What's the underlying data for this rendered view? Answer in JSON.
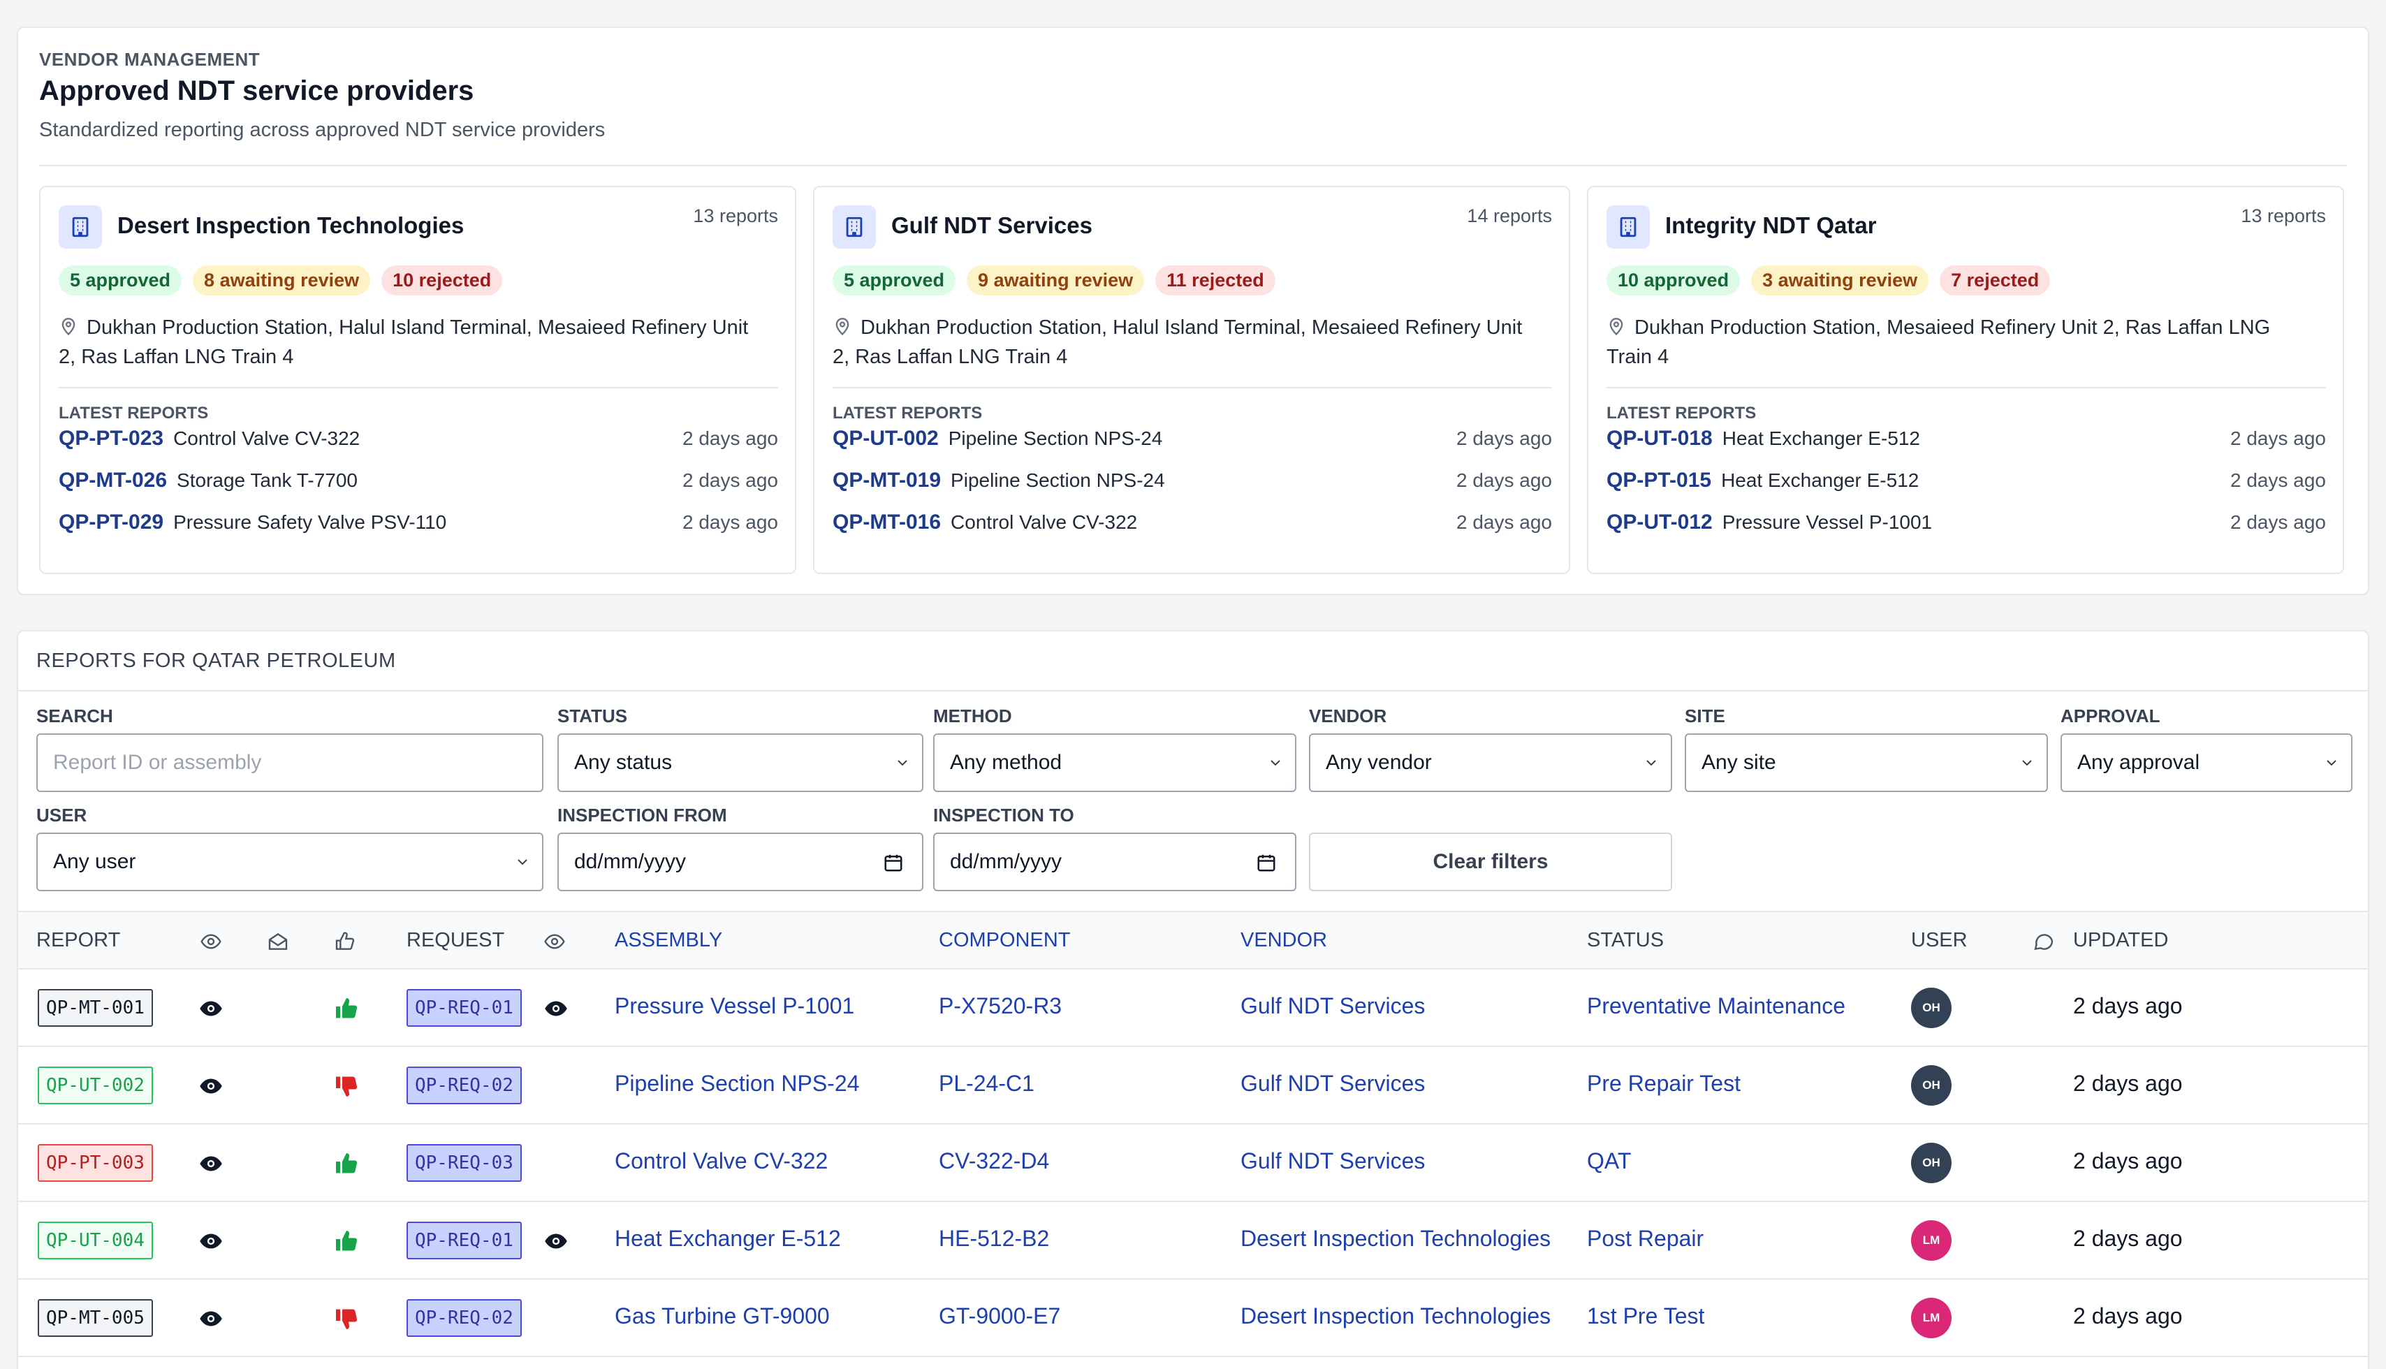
{
  "vendor_management": {
    "eyebrow": "VENDOR MANAGEMENT",
    "title": "Approved NDT service providers",
    "subtitle": "Standardized reporting across approved NDT service providers",
    "latest_label": "LATEST REPORTS",
    "vendors": [
      {
        "name": "Desert Inspection Technologies",
        "count": "13 reports",
        "approved": "5 approved",
        "awaiting": "8 awaiting review",
        "rejected": "10 rejected",
        "sites": "Dukhan Production Station, Halul Island Terminal, Mesaieed Refinery Unit 2, Ras Laffan LNG Train 4",
        "reports": [
          {
            "id": "QP-PT-023",
            "name": "Control Valve CV-322",
            "time": "2 days ago"
          },
          {
            "id": "QP-MT-026",
            "name": "Storage Tank T-7700",
            "time": "2 days ago"
          },
          {
            "id": "QP-PT-029",
            "name": "Pressure Safety Valve PSV-110",
            "time": "2 days ago"
          }
        ]
      },
      {
        "name": "Gulf NDT Services",
        "count": "14 reports",
        "approved": "5 approved",
        "awaiting": "9 awaiting review",
        "rejected": "11 rejected",
        "sites": "Dukhan Production Station, Halul Island Terminal, Mesaieed Refinery Unit 2, Ras Laffan LNG Train 4",
        "reports": [
          {
            "id": "QP-UT-002",
            "name": "Pipeline Section NPS-24",
            "time": "2 days ago"
          },
          {
            "id": "QP-MT-019",
            "name": "Pipeline Section NPS-24",
            "time": "2 days ago"
          },
          {
            "id": "QP-MT-016",
            "name": "Control Valve CV-322",
            "time": "2 days ago"
          }
        ]
      },
      {
        "name": "Integrity NDT Qatar",
        "count": "13 reports",
        "approved": "10 approved",
        "awaiting": "3 awaiting review",
        "rejected": "7 rejected",
        "sites": "Dukhan Production Station, Mesaieed Refinery Unit 2, Ras Laffan LNG Train 4",
        "reports": [
          {
            "id": "QP-UT-018",
            "name": "Heat Exchanger E-512",
            "time": "2 days ago"
          },
          {
            "id": "QP-PT-015",
            "name": "Heat Exchanger E-512",
            "time": "2 days ago"
          },
          {
            "id": "QP-UT-012",
            "name": "Pressure Vessel P-1001",
            "time": "2 days ago"
          }
        ]
      }
    ]
  },
  "reports": {
    "title": "REPORTS FOR QATAR PETROLEUM",
    "filters": {
      "search_label": "SEARCH",
      "search_placeholder": "Report ID or assembly",
      "status_label": "STATUS",
      "status_value": "Any status",
      "method_label": "METHOD",
      "method_value": "Any method",
      "vendor_label": "VENDOR",
      "vendor_value": "Any vendor",
      "site_label": "SITE",
      "site_value": "Any site",
      "approval_label": "APPROVAL",
      "approval_value": "Any approval",
      "user_label": "USER",
      "user_value": "Any user",
      "from_label": "INSPECTION FROM",
      "from_value": "dd/mm/yyyy",
      "to_label": "INSPECTION TO",
      "to_value": "dd/mm/yyyy",
      "clear_label": "Clear filters"
    },
    "columns": {
      "report": "REPORT",
      "request": "REQUEST",
      "assembly": "ASSEMBLY",
      "component": "COMPONENT",
      "vendor": "VENDOR",
      "status": "STATUS",
      "user": "USER",
      "updated": "UPDATED"
    },
    "icons": {
      "viewed": "eye-icon",
      "emailed": "envelope-open-icon",
      "approval": "thumbs-up-icon",
      "comments": "comment-icon"
    },
    "colors": {
      "avatar_oh": "#334155",
      "avatar_lm": "#db2777",
      "approve": "#16a34a",
      "reject": "#dc2626"
    },
    "rows": [
      {
        "report": "QP-MT-001",
        "report_style": "gray",
        "approval": "up",
        "request": "QP-REQ-01",
        "req_viewed": true,
        "assembly": "Pressure Vessel P-1001",
        "component": "P-X7520-R3",
        "vendor": "Gulf NDT Services",
        "status": "Preventative Maintenance",
        "user": "OH",
        "updated": "2 days ago"
      },
      {
        "report": "QP-UT-002",
        "report_style": "green",
        "approval": "down",
        "request": "QP-REQ-02",
        "req_viewed": false,
        "assembly": "Pipeline Section NPS-24",
        "component": "PL-24-C1",
        "vendor": "Gulf NDT Services",
        "status": "Pre Repair Test",
        "user": "OH",
        "updated": "2 days ago"
      },
      {
        "report": "QP-PT-003",
        "report_style": "red",
        "approval": "up",
        "request": "QP-REQ-03",
        "req_viewed": false,
        "assembly": "Control Valve CV-322",
        "component": "CV-322-D4",
        "vendor": "Gulf NDT Services",
        "status": "QAT",
        "user": "OH",
        "updated": "2 days ago"
      },
      {
        "report": "QP-UT-004",
        "report_style": "green",
        "approval": "up",
        "request": "QP-REQ-01",
        "req_viewed": true,
        "assembly": "Heat Exchanger E-512",
        "component": "HE-512-B2",
        "vendor": "Desert Inspection Technologies",
        "status": "Post Repair",
        "user": "LM",
        "updated": "2 days ago"
      },
      {
        "report": "QP-MT-005",
        "report_style": "gray",
        "approval": "down",
        "request": "QP-REQ-02",
        "req_viewed": false,
        "assembly": "Gas Turbine GT-9000",
        "component": "GT-9000-E7",
        "vendor": "Desert Inspection Technologies",
        "status": "1st Pre Test",
        "user": "LM",
        "updated": "2 days ago"
      }
    ]
  }
}
